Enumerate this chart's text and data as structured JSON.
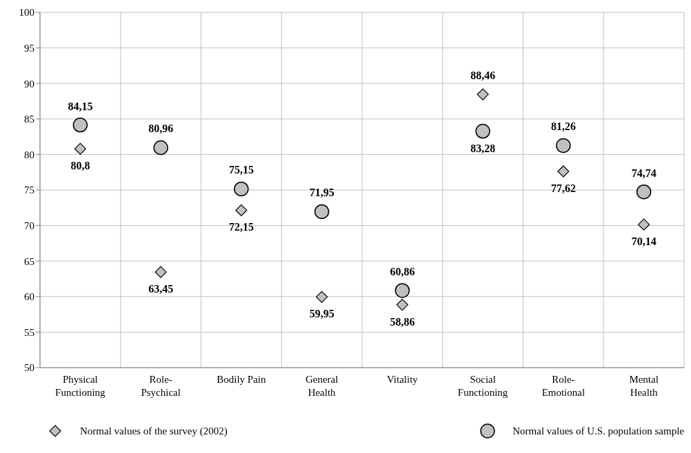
{
  "chart_data": {
    "type": "scatter",
    "categories": [
      "Physical Functioning",
      "Role-Psychical",
      "Bodily Pain",
      "General Health",
      "Vitality",
      "Social Functioning",
      "Role-Emotional",
      "Mental Health"
    ],
    "series": [
      {
        "name": "Normal values of the survey (2002)",
        "color": "#c0c0c0",
        "marker": "diamond",
        "values": [
          80.8,
          63.45,
          72.15,
          59.95,
          58.86,
          88.46,
          77.62,
          70.14
        ],
        "value_labels": [
          "80,8",
          "63,45",
          "72,15",
          "59,95",
          "58,86",
          "88,46",
          "77,62",
          "70,14"
        ]
      },
      {
        "name": "Normal values of U.S. population sample",
        "color": "#c0c0c0",
        "marker": "circle",
        "values": [
          84.15,
          80.96,
          75.15,
          71.95,
          60.86,
          83.28,
          81.26,
          74.74
        ],
        "value_labels": [
          "84,15",
          "80,96",
          "75,15",
          "71,95",
          "60,86",
          "83,28",
          "81,26",
          "74,74"
        ]
      }
    ],
    "ylim": [
      50,
      100
    ],
    "yticks": [
      50,
      55,
      60,
      65,
      70,
      75,
      80,
      85,
      90,
      95,
      100
    ],
    "grid": true,
    "legend": "bottom"
  }
}
